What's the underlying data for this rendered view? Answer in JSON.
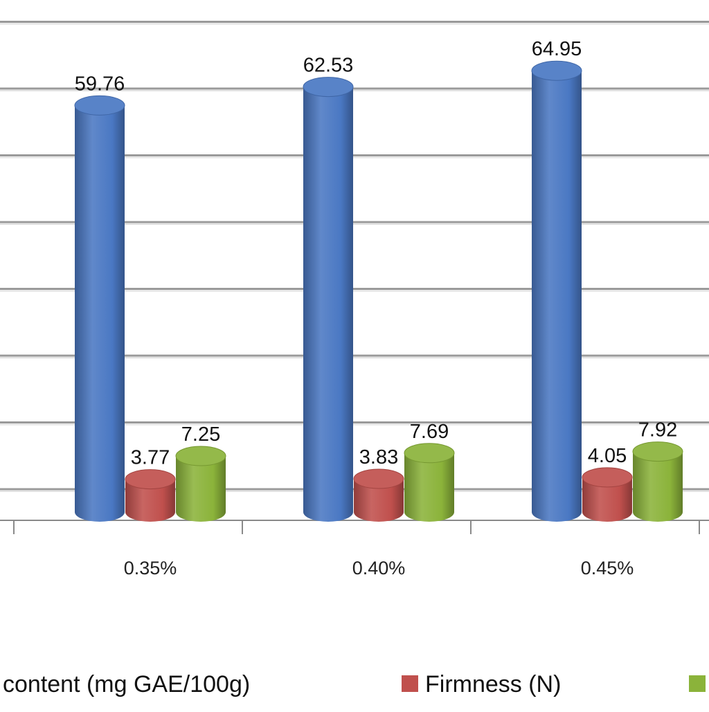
{
  "chart_data": {
    "type": "bar",
    "style": "3d-cylinder",
    "categories": [
      "0.35%",
      "0.40%",
      "0.45%"
    ],
    "series": [
      {
        "name": "content (mg GAE/100g)",
        "color": "#4a78c3",
        "values": [
          59.76,
          62.53,
          64.95
        ],
        "labels": [
          "59.76",
          "62.53",
          "64.95"
        ]
      },
      {
        "name": "Firmness (N)",
        "color": "#c0504d",
        "values": [
          3.77,
          3.83,
          4.05
        ],
        "labels": [
          "3.77",
          "3.83",
          "4.05"
        ]
      },
      {
        "name": "",
        "color": "#8bb33a",
        "values": [
          7.25,
          7.69,
          7.92
        ],
        "labels": [
          "7.25",
          "7.69",
          "7.92"
        ]
      }
    ],
    "ylim": [
      0,
      70
    ],
    "y_gridline_step": 10,
    "grid": true,
    "legend_position": "bottom"
  }
}
